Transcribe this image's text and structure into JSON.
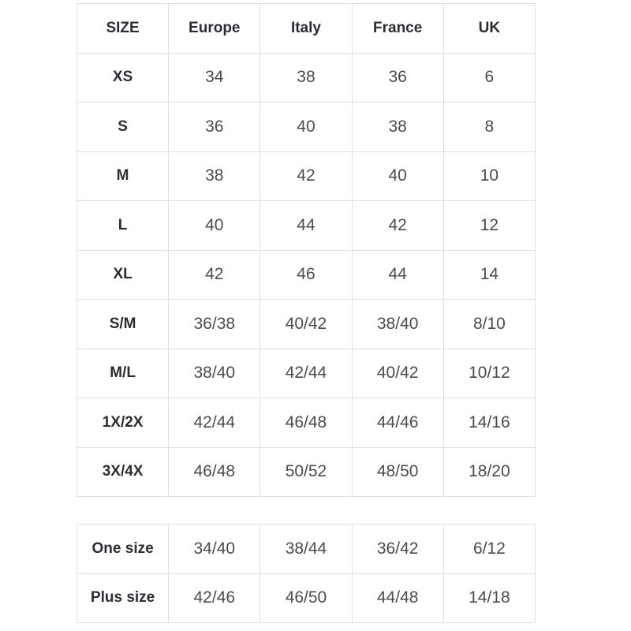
{
  "colors": {
    "background": "#ffffff",
    "border": "#e0e0e0",
    "header_text": "#2a2d31",
    "cell_text": "#484c51"
  },
  "size_chart": {
    "columns": [
      "SIZE",
      "Europe",
      "Italy",
      "France",
      "UK"
    ],
    "rows": [
      {
        "label": "XS",
        "values": [
          "34",
          "38",
          "36",
          "6"
        ]
      },
      {
        "label": "S",
        "values": [
          "36",
          "40",
          "38",
          "8"
        ]
      },
      {
        "label": "M",
        "values": [
          "38",
          "42",
          "40",
          "10"
        ]
      },
      {
        "label": "L",
        "values": [
          "40",
          "44",
          "42",
          "12"
        ]
      },
      {
        "label": "XL",
        "values": [
          "42",
          "46",
          "44",
          "14"
        ]
      },
      {
        "label": "S/M",
        "values": [
          "36/38",
          "40/42",
          "38/40",
          "8/10"
        ]
      },
      {
        "label": "M/L",
        "values": [
          "38/40",
          "42/44",
          "40/42",
          "10/12"
        ]
      },
      {
        "label": "1X/2X",
        "values": [
          "42/44",
          "46/48",
          "44/46",
          "14/16"
        ]
      },
      {
        "label": "3X/4X",
        "values": [
          "46/48",
          "50/52",
          "48/50",
          "18/20"
        ]
      }
    ]
  },
  "special_sizes": {
    "rows": [
      {
        "label": "One size",
        "values": [
          "34/40",
          "38/44",
          "36/42",
          "6/12"
        ]
      },
      {
        "label": "Plus size",
        "values": [
          "42/46",
          "46/50",
          "44/48",
          "14/18"
        ]
      }
    ]
  }
}
